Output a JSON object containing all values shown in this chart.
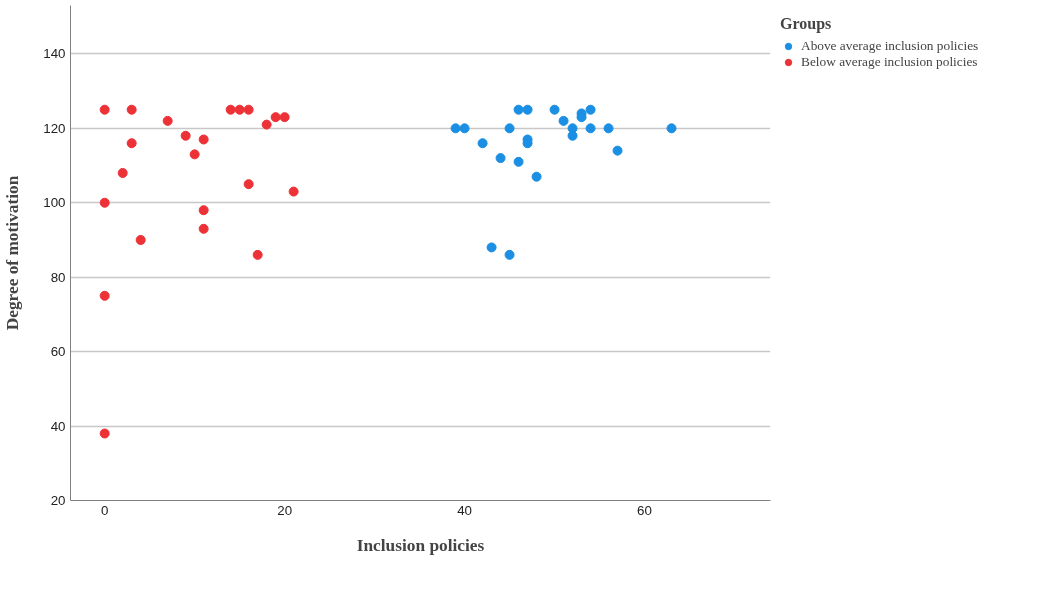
{
  "chart_data": {
    "type": "scatter",
    "xlabel": "Inclusion policies",
    "ylabel": "Degree of motivation",
    "legend_title": "Groups",
    "xlim": [
      -3.8,
      74
    ],
    "xticks": [
      0,
      20,
      40,
      60
    ],
    "ylim": [
      20,
      153
    ],
    "yticks": [
      20,
      40,
      60,
      80,
      100,
      120,
      140
    ],
    "grid": "y",
    "legend": "top right",
    "marker": "circle",
    "series": [
      {
        "name": "Above average inclusion policies",
        "color": "#1a8fe3",
        "x": [
          39,
          40,
          42,
          44,
          45,
          46,
          47,
          46,
          47,
          47,
          48,
          50,
          51,
          52,
          52,
          53,
          53,
          54,
          54,
          56,
          57,
          63,
          43,
          45
        ],
        "values": [
          120,
          120,
          116,
          112,
          120,
          125,
          125,
          111,
          117,
          116,
          107,
          125,
          122,
          120,
          118,
          124,
          123,
          125,
          120,
          120,
          114,
          120,
          88,
          86
        ]
      },
      {
        "name": "Below average inclusion policies",
        "color": "#ed3237",
        "x": [
          0,
          3,
          7,
          9,
          11,
          3,
          10,
          2,
          0,
          4,
          11,
          11,
          16,
          17,
          21,
          14,
          15,
          16,
          18,
          19,
          20,
          0,
          0
        ],
        "values": [
          125,
          125,
          122,
          118,
          117,
          116,
          113,
          108,
          100,
          90,
          98,
          93,
          105,
          86,
          103,
          125,
          125,
          125,
          121,
          123,
          123,
          75,
          38
        ]
      }
    ]
  }
}
